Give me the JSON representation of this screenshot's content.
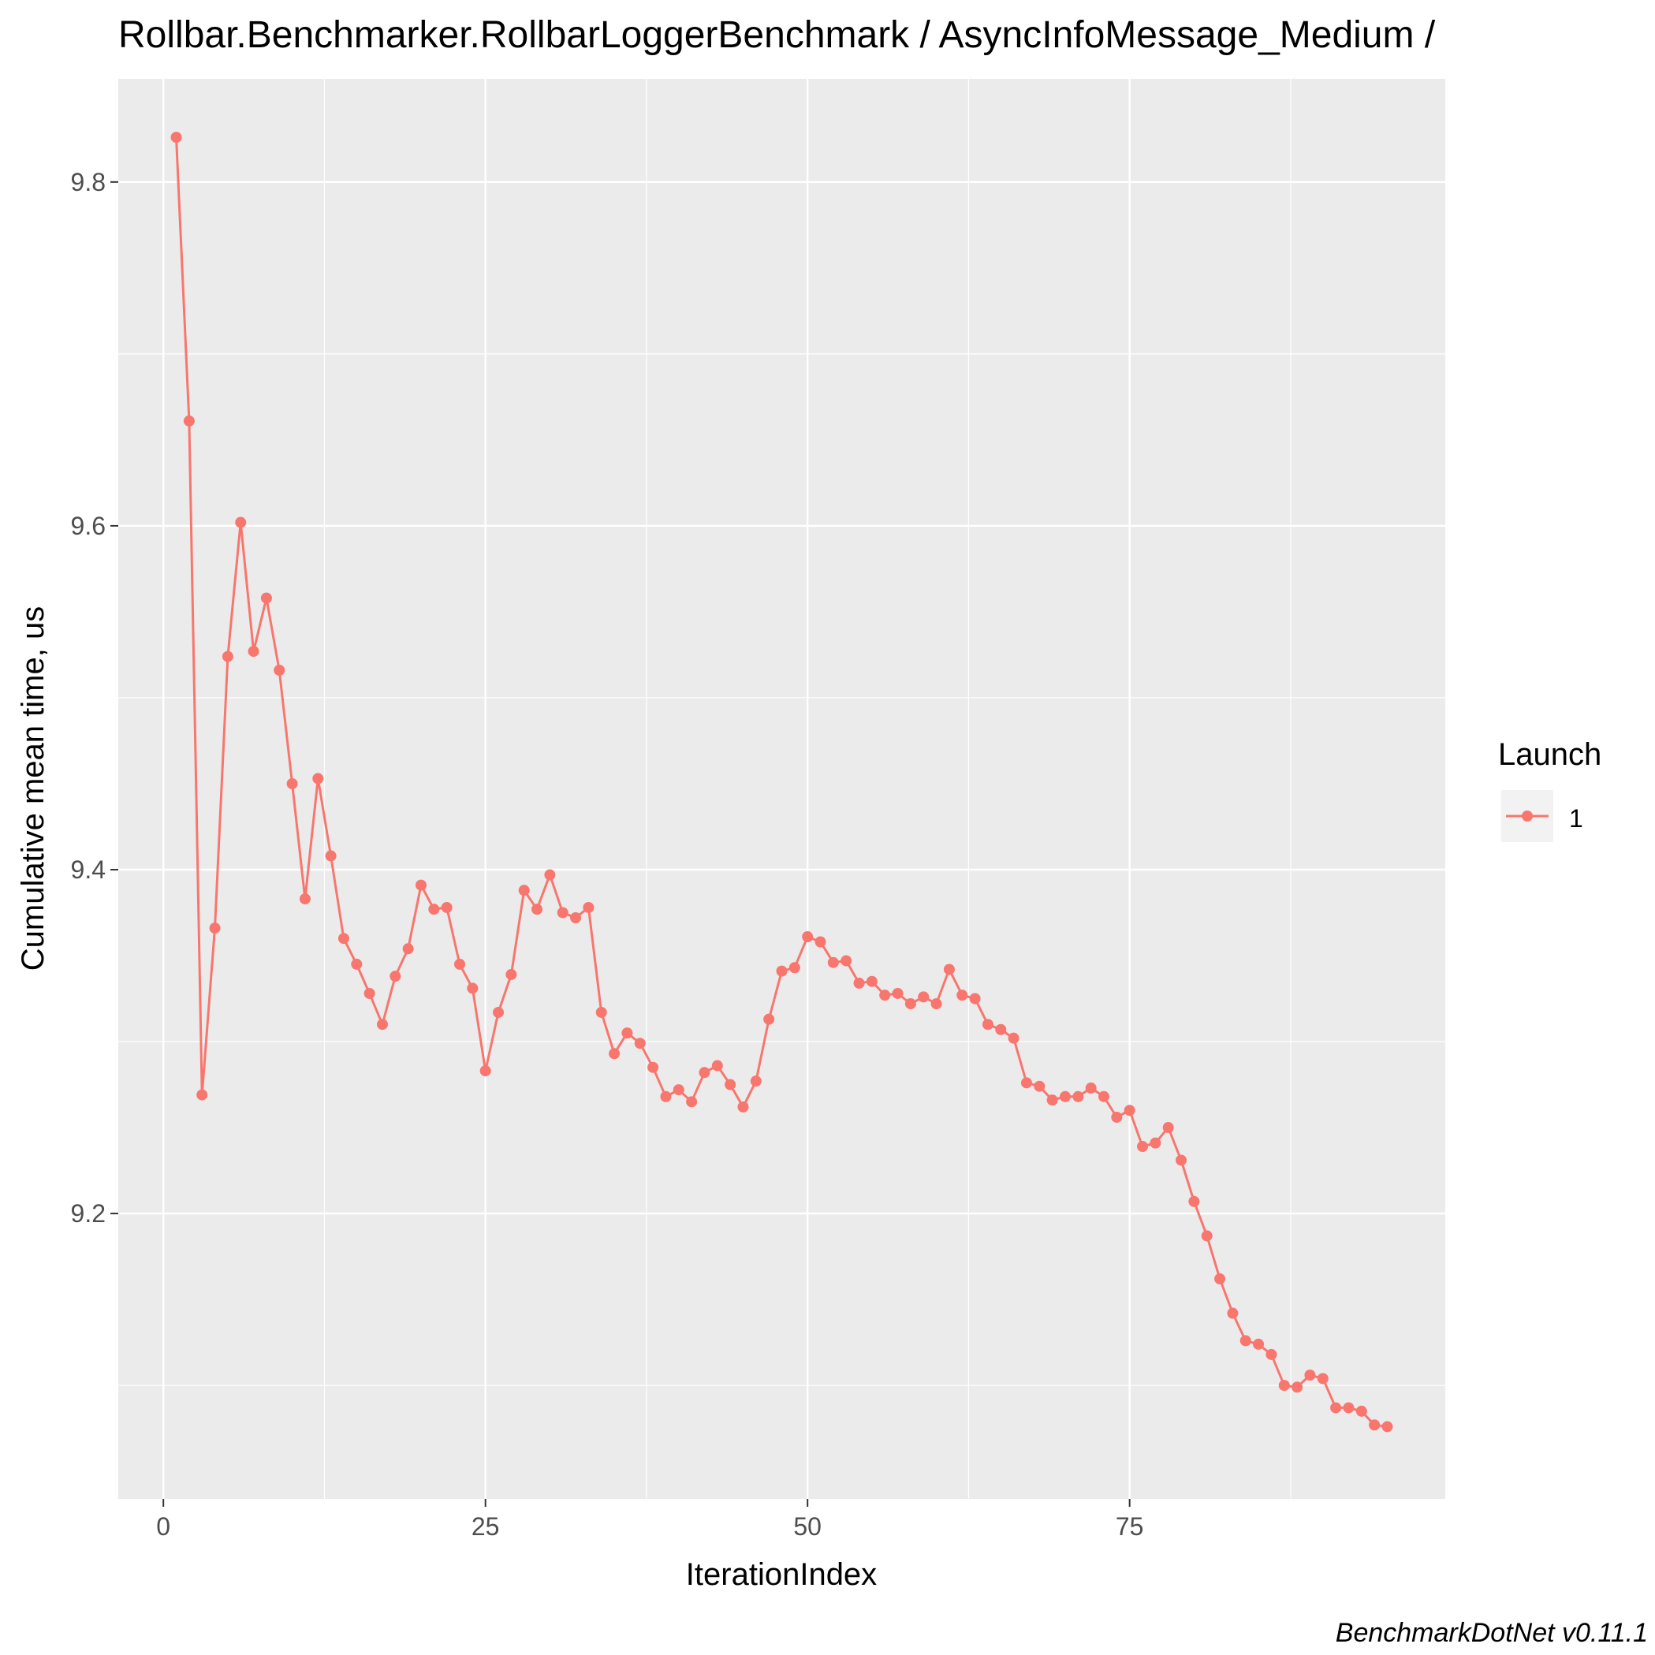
{
  "chart_data": {
    "type": "line",
    "title": "Rollbar.Benchmarker.RollbarLoggerBenchmark / AsyncInfoMessage_Medium /",
    "xlabel": "IterationIndex",
    "ylabel": "Cumulative mean time, us",
    "caption": "BenchmarkDotNet v0.11.1",
    "xlim": [
      -3.5,
      99.5
    ],
    "ylim": [
      9.034,
      9.86
    ],
    "x_ticks": [
      0,
      25,
      50,
      75
    ],
    "x_tick_labels": [
      "0",
      "25",
      "50",
      "75"
    ],
    "y_ticks": [
      9.2,
      9.4,
      9.6,
      9.8
    ],
    "y_tick_labels": [
      "9.2",
      "9.4",
      "9.6",
      "9.8"
    ],
    "grid": true,
    "legend": {
      "title": "Launch",
      "position": "right",
      "entries": [
        "1"
      ]
    },
    "colors": {
      "series": "#F8766D",
      "panel": "#EBEBEB",
      "grid": "#FFFFFF"
    },
    "series": [
      {
        "name": "1",
        "x": [
          1,
          2,
          3,
          4,
          5,
          6,
          7,
          8,
          9,
          10,
          11,
          12,
          13,
          14,
          15,
          16,
          17,
          18,
          19,
          20,
          21,
          22,
          23,
          24,
          25,
          26,
          27,
          28,
          29,
          30,
          31,
          32,
          33,
          34,
          35,
          36,
          37,
          38,
          39,
          40,
          41,
          42,
          43,
          44,
          45,
          46,
          47,
          48,
          49,
          50,
          51,
          52,
          53,
          54,
          55,
          56,
          57,
          58,
          59,
          60,
          61,
          62,
          63,
          64,
          65,
          66,
          67,
          68,
          69,
          70,
          71,
          72,
          73,
          74,
          75,
          76,
          77,
          78,
          79,
          80,
          81,
          82,
          83,
          84,
          85,
          86,
          87,
          88,
          89,
          90,
          91,
          92,
          93,
          94,
          95
        ],
        "values": [
          9.826,
          9.661,
          9.269,
          9.366,
          9.524,
          9.602,
          9.527,
          9.558,
          9.516,
          9.45,
          9.383,
          9.453,
          9.408,
          9.36,
          9.345,
          9.328,
          9.31,
          9.338,
          9.354,
          9.391,
          9.377,
          9.378,
          9.345,
          9.331,
          9.283,
          9.317,
          9.339,
          9.388,
          9.377,
          9.397,
          9.375,
          9.372,
          9.378,
          9.317,
          9.293,
          9.305,
          9.299,
          9.285,
          9.268,
          9.272,
          9.265,
          9.282,
          9.286,
          9.275,
          9.262,
          9.277,
          9.313,
          9.341,
          9.343,
          9.361,
          9.358,
          9.346,
          9.347,
          9.334,
          9.335,
          9.327,
          9.328,
          9.322,
          9.326,
          9.322,
          9.342,
          9.327,
          9.325,
          9.31,
          9.307,
          9.302,
          9.276,
          9.274,
          9.266,
          9.268,
          9.268,
          9.273,
          9.268,
          9.256,
          9.26,
          9.239,
          9.241,
          9.25,
          9.231,
          9.207,
          9.187,
          9.162,
          9.142,
          9.126,
          9.124,
          9.118,
          9.1,
          9.099,
          9.106,
          9.104,
          9.087,
          9.087,
          9.085,
          9.077,
          9.076
        ]
      }
    ]
  }
}
